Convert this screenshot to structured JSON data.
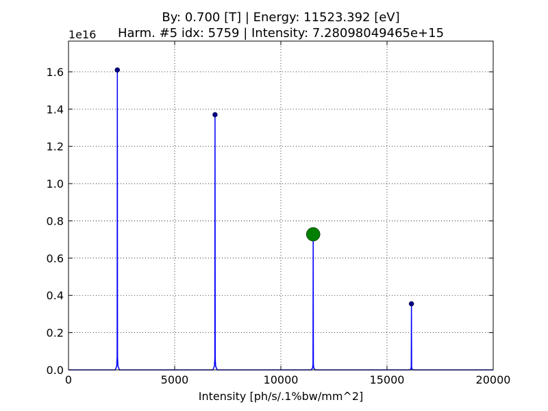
{
  "chart_data": {
    "type": "line",
    "title": "By: 0.700 [T] | Energy: 11523.392 [eV]",
    "subtitle": "Harm. #5 idx: 5759 | Intensity: 7.28098049465e+15",
    "xlabel": "Intensity [ph/s/.1%bw/mm^2]",
    "y_offset_label": "1e16",
    "xlim": [
      0,
      20000
    ],
    "xticks": [
      0,
      5000,
      10000,
      15000,
      20000
    ],
    "ylim": [
      0,
      1.765
    ],
    "yticks": [
      {
        "value": 0,
        "label": "0.0"
      },
      0.2,
      0.4,
      0.6,
      0.8,
      {
        "value": 1,
        "label": "1.0"
      },
      1.2,
      1.4,
      1.6
    ],
    "grid": true,
    "line": {
      "color": "#0000ff",
      "x": [
        0,
        2200,
        2270,
        2290,
        2300,
        2310,
        2330,
        2400,
        6800,
        6870,
        6890,
        6900,
        6910,
        6930,
        7000,
        11420,
        11495,
        11513,
        11523,
        11533,
        11550,
        11620,
        16050,
        16125,
        16140,
        16150,
        16160,
        16175,
        16250,
        20000
      ],
      "y": [
        0,
        0,
        0.02,
        0.07,
        1.61,
        0.07,
        0.02,
        0,
        0,
        0.02,
        0.06,
        1.37,
        0.06,
        0.02,
        0,
        0,
        0.01,
        0.03,
        0.728,
        0.03,
        0.01,
        0,
        0,
        0.005,
        0.015,
        0.355,
        0.015,
        0.005,
        0,
        0
      ]
    },
    "peaks": {
      "color": "#00008b",
      "x": [
        2300,
        6900,
        11523,
        16150
      ],
      "y": [
        1.61,
        1.37,
        0.728,
        0.355
      ]
    },
    "highlight": {
      "color": "#008000",
      "x": [
        11523
      ],
      "y": [
        0.728
      ]
    }
  }
}
